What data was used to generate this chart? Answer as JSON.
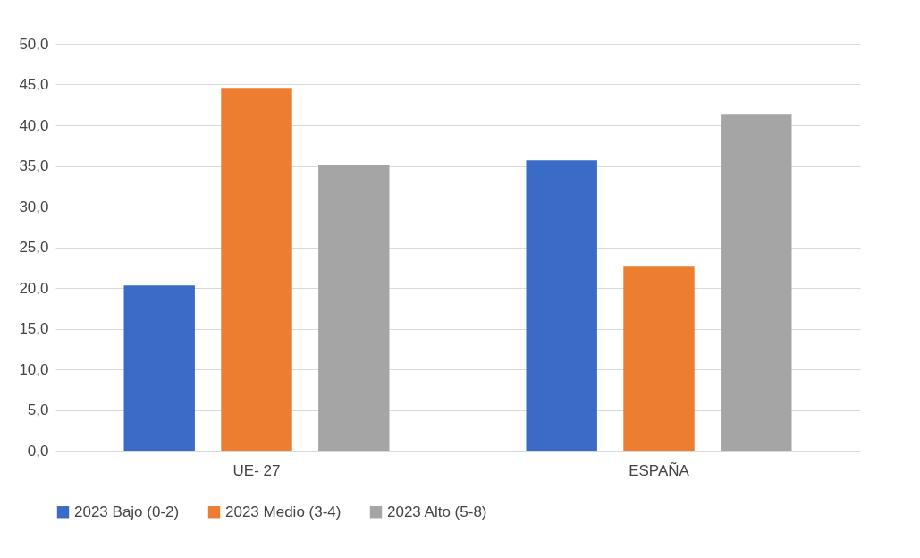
{
  "chart_data": {
    "type": "bar",
    "categories": [
      "UE- 27",
      "ESPAÑA"
    ],
    "series": [
      {
        "name": "2023 Bajo (0-2)",
        "color": "#3a6bc6",
        "values": [
          20.3,
          35.7
        ]
      },
      {
        "name": "2023 Medio (3-4)",
        "color": "#ed7d31",
        "values": [
          44.6,
          22.6
        ]
      },
      {
        "name": "2023 Alto (5-8)",
        "color": "#a5a5a5",
        "values": [
          35.1,
          41.3
        ]
      }
    ],
    "ylim": [
      0,
      50
    ],
    "yticks": [
      {
        "value": 0,
        "label": "0,0"
      },
      {
        "value": 5,
        "label": "5,0"
      },
      {
        "value": 10,
        "label": "10,0"
      },
      {
        "value": 15,
        "label": "15,0"
      },
      {
        "value": 20,
        "label": "20,0"
      },
      {
        "value": 25,
        "label": "25,0"
      },
      {
        "value": 30,
        "label": "30,0"
      },
      {
        "value": 35,
        "label": "35,0"
      },
      {
        "value": 40,
        "label": "40,0"
      },
      {
        "value": 45,
        "label": "45,0"
      },
      {
        "value": 50,
        "label": "50,0"
      }
    ],
    "grid": "y",
    "legend": "bottom"
  }
}
